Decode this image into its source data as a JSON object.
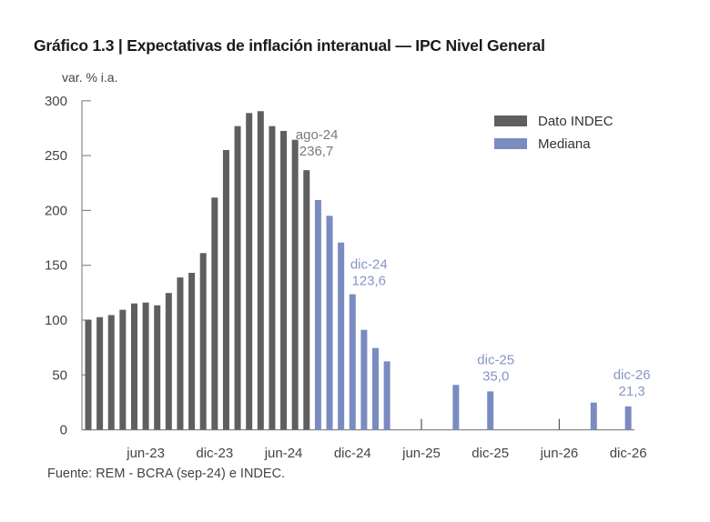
{
  "header": {
    "title": "Gráfico 1.3 | Expectativas de inflación interanual — IPC Nivel General",
    "unit_label": "var. % i.a.",
    "source": "Fuente: REM - BCRA (sep-24) e INDEC."
  },
  "chart_data": {
    "type": "bar",
    "title": "Gráfico 1.3 | Expectativas de inflación interanual — IPC Nivel General",
    "xlabel": "",
    "ylabel": "var. % i.a.",
    "ylim": [
      0,
      300
    ],
    "yticks": [
      0,
      50,
      100,
      150,
      200,
      250,
      300
    ],
    "x_tick_labels": [
      "jun-23",
      "dic-23",
      "jun-24",
      "dic-24",
      "jun-25",
      "dic-25",
      "jun-26",
      "dic-26"
    ],
    "x_ticks_period": [
      "jun-23",
      "dic-23",
      "jun-24",
      "dic-24",
      "jun-25",
      "dic-25",
      "jun-26",
      "dic-26"
    ],
    "x_range": [
      "ene-23",
      "dic-26"
    ],
    "grid": false,
    "legend_position": "top-right",
    "series": [
      {
        "name": "Dato INDEC",
        "color": "#5f5f5f",
        "points": [
          {
            "period": "ene-23",
            "value": 100.2
          },
          {
            "period": "feb-23",
            "value": 102.7
          },
          {
            "period": "mar-23",
            "value": 104.6
          },
          {
            "period": "abr-23",
            "value": 109.4
          },
          {
            "period": "may-23",
            "value": 115.2
          },
          {
            "period": "jun-23",
            "value": 116.0
          },
          {
            "period": "jul-23",
            "value": 113.5
          },
          {
            "period": "ago-23",
            "value": 124.7
          },
          {
            "period": "sep-23",
            "value": 138.9
          },
          {
            "period": "oct-23",
            "value": 143.1
          },
          {
            "period": "nov-23",
            "value": 161.1
          },
          {
            "period": "dic-23",
            "value": 211.7
          },
          {
            "period": "ene-24",
            "value": 255.1
          },
          {
            "period": "feb-24",
            "value": 276.9
          },
          {
            "period": "mar-24",
            "value": 288.8
          },
          {
            "period": "abr-24",
            "value": 290.5
          },
          {
            "period": "may-24",
            "value": 276.9
          },
          {
            "period": "jun-24",
            "value": 272.5
          },
          {
            "period": "jul-24",
            "value": 264.4
          },
          {
            "period": "ago-24",
            "value": 236.7
          }
        ]
      },
      {
        "name": "Mediana",
        "color": "#7a8bc0",
        "points": [
          {
            "period": "sep-24",
            "value": 209.5
          },
          {
            "period": "oct-24",
            "value": 195.1
          },
          {
            "period": "nov-24",
            "value": 170.7
          },
          {
            "period": "dic-24",
            "value": 123.6
          },
          {
            "period": "ene-25",
            "value": 91.1
          },
          {
            "period": "feb-25",
            "value": 74.5
          },
          {
            "period": "mar-25",
            "value": 62.4
          },
          {
            "period": "sep-25",
            "value": 40.9
          },
          {
            "period": "dic-25",
            "value": 35.0
          },
          {
            "period": "sep-26",
            "value": 24.8
          },
          {
            "period": "dic-26",
            "value": 21.3
          }
        ]
      }
    ],
    "annotations": [
      {
        "period": "ago-24",
        "line1": "ago-24",
        "line2": "236,7",
        "color": "#7a7a7a"
      },
      {
        "period": "dic-24",
        "line1": "dic-24",
        "line2": "123,6",
        "color": "#8795c6"
      },
      {
        "period": "dic-25",
        "line1": "dic-25",
        "line2": "35,0",
        "color": "#8795c6"
      },
      {
        "period": "dic-26",
        "line1": "dic-26",
        "line2": "21,3",
        "color": "#8795c6"
      }
    ]
  }
}
